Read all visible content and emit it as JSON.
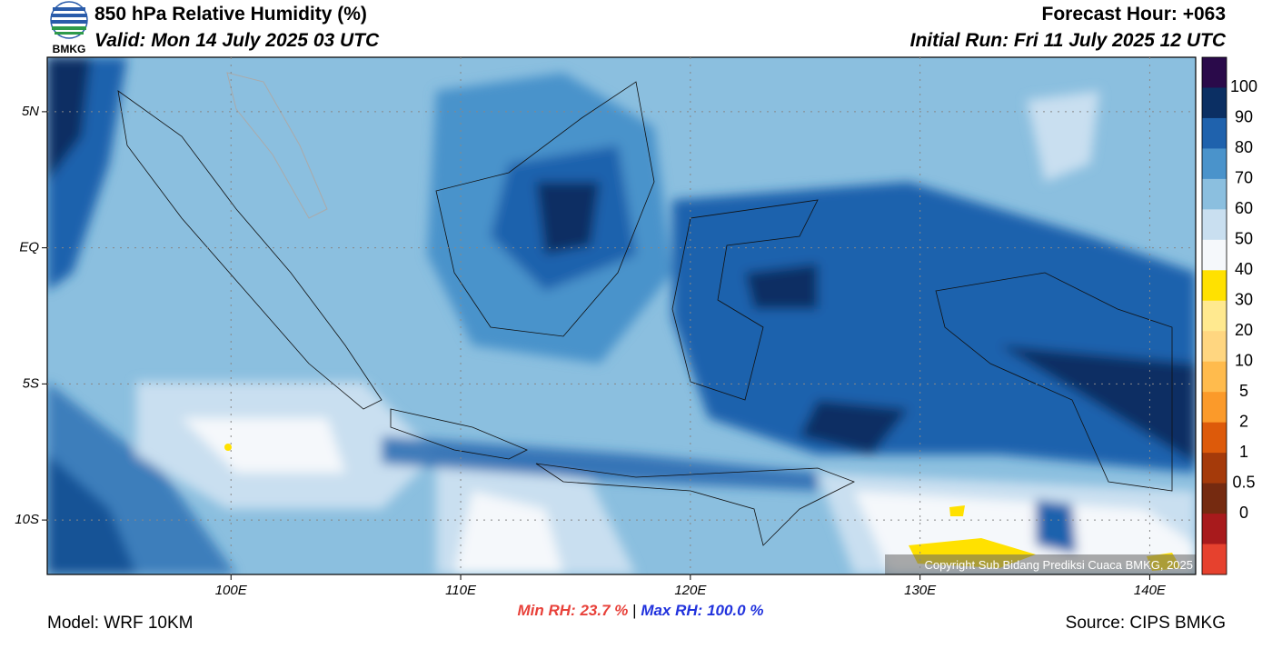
{
  "header": {
    "logo_text": "BMKG",
    "title": "850 hPa Relative Humidity (%)",
    "valid": "Valid: Mon 14 July 2025 03 UTC",
    "forecast_hour": "Forecast Hour: +063",
    "initial_run": "Initial Run: Fri 11 July 2025 12 UTC"
  },
  "map": {
    "lon_range": [
      92,
      142
    ],
    "lat_range": [
      7,
      -12
    ],
    "lat_ticks": [
      {
        "value": 5,
        "label": "5N"
      },
      {
        "value": 0,
        "label": "EQ"
      },
      {
        "value": -5,
        "label": "5S"
      },
      {
        "value": -10,
        "label": "10S"
      }
    ],
    "lon_ticks": [
      {
        "value": 100,
        "label": "100E"
      },
      {
        "value": 110,
        "label": "110E"
      },
      {
        "value": 120,
        "label": "120E"
      },
      {
        "value": 130,
        "label": "130E"
      },
      {
        "value": 140,
        "label": "140E"
      }
    ],
    "copyright": "Copyright Sub Bidang Prediksi Cuaca BMKG, 2025"
  },
  "colorbar": {
    "colors": [
      "#2a0a4a",
      "#0b2f63",
      "#1f62ad",
      "#4a93cb",
      "#8bbfdf",
      "#c9dff0",
      "#f5f8fb",
      "#ffe100",
      "#ffe98f",
      "#ffd680",
      "#ffbb4d",
      "#fb9a2a",
      "#dd5a0a",
      "#a53a0a",
      "#752a10",
      "#a81a1c",
      "#e6412e"
    ],
    "levels": [
      100,
      90,
      80,
      70,
      60,
      50,
      40,
      30,
      20,
      10,
      5,
      2,
      1,
      0.5,
      0
    ]
  },
  "footer": {
    "model": "Model: WRF 10KM",
    "min_rh": {
      "label": "Min RH:",
      "value": 23.7,
      "unit": "%"
    },
    "separator": "|",
    "max_rh": {
      "label": "Max RH:",
      "value": 100.0,
      "unit": "%"
    },
    "source": "Source: CIPS BMKG"
  }
}
